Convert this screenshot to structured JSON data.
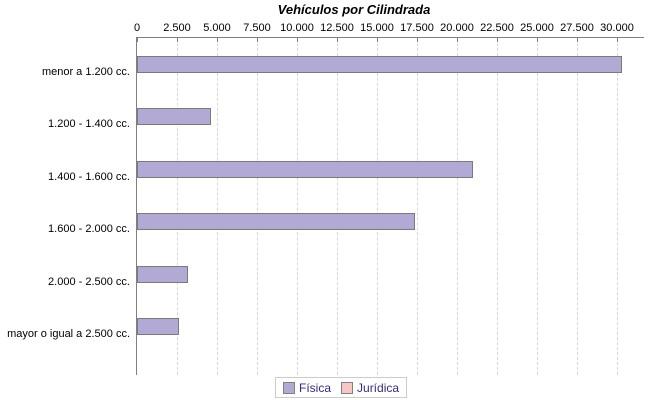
{
  "title": "Vehículos por Cilindrada",
  "chart_data": {
    "type": "bar",
    "orientation": "horizontal",
    "title": "Vehículos por Cilindrada",
    "categories": [
      "menor a 1.200 cc.",
      "1.200 - 1.400 cc.",
      "1.400 - 1.600 cc.",
      "1.600 - 2.000 cc.",
      "2.000 - 2.500 cc.",
      "mayor o igual a 2.500 cc."
    ],
    "series": [
      {
        "name": "Física",
        "color": "#b2a9d4",
        "values": [
          30200,
          4500,
          20900,
          17250,
          3050,
          2500
        ]
      },
      {
        "name": "Jurídica",
        "color": "#f9c6c6",
        "values": [
          0,
          0,
          0,
          0,
          0,
          0
        ]
      }
    ],
    "xlim": [
      0,
      31700
    ],
    "x_ticks": [
      {
        "value": 0,
        "label": "0"
      },
      {
        "value": 2500,
        "label": "2.500"
      },
      {
        "value": 5000,
        "label": "5.000"
      },
      {
        "value": 7500,
        "label": "7.500"
      },
      {
        "value": 10000,
        "label": "10.000"
      },
      {
        "value": 12500,
        "label": "12.500"
      },
      {
        "value": 15000,
        "label": "15.000"
      },
      {
        "value": 17500,
        "label": "17.500"
      },
      {
        "value": 20000,
        "label": "20.000"
      },
      {
        "value": 22500,
        "label": "22.500"
      },
      {
        "value": 25000,
        "label": "25.000"
      },
      {
        "value": 27500,
        "label": "27.500"
      },
      {
        "value": 30000,
        "label": "30.000"
      }
    ],
    "axis_position": "top",
    "grid": "vertical-dashed",
    "legend_position": "bottom-center"
  },
  "colors": {
    "bar_border": "#7a7a7a",
    "axis_line": "#808080",
    "gridline": "#d8d8d8",
    "legend_text": "#352a7e",
    "legend_border": "#cccccc",
    "background": "#ffffff"
  }
}
